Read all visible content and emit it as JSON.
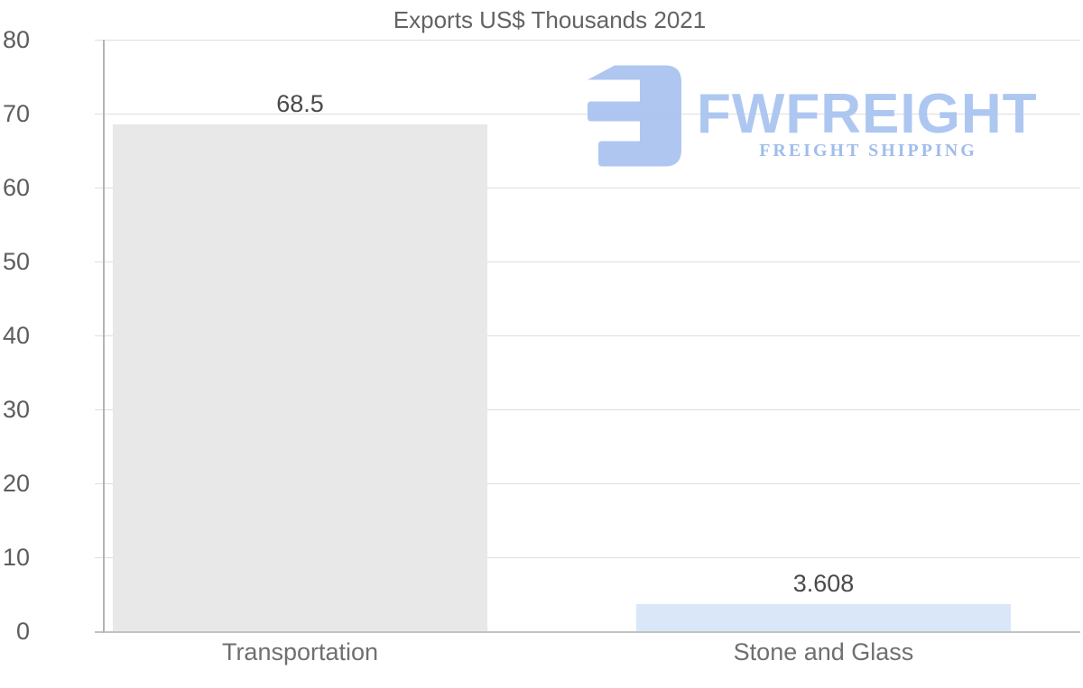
{
  "title": "Exports US$ Thousands 2021",
  "logo": {
    "brand": "FWFREIGHT",
    "tagline": "FREIGHT SHIPPING",
    "icon": "fwfreight-logo-icon",
    "brand_color": "#a9c5f1",
    "tagline_color": "#a0bdeb",
    "icon_color": "#a9c3ef"
  },
  "chart_data": {
    "type": "bar",
    "title": "Exports US$ Thousands 2021",
    "categories": [
      "Transportation",
      "Stone and Glass"
    ],
    "values": [
      68.5,
      3.608
    ],
    "value_labels": [
      "68.5",
      "3.608"
    ],
    "bar_colors": [
      "#e8e8e8",
      "#d9e7f8"
    ],
    "xlabel": "",
    "ylabel": "",
    "ylim": [
      0,
      80
    ],
    "yticks": [
      0,
      10,
      20,
      30,
      40,
      50,
      60,
      70,
      80
    ],
    "grid": true,
    "legend": false,
    "layout_hint": "vertical bars, y gridlines on, brand watermark top-right"
  }
}
